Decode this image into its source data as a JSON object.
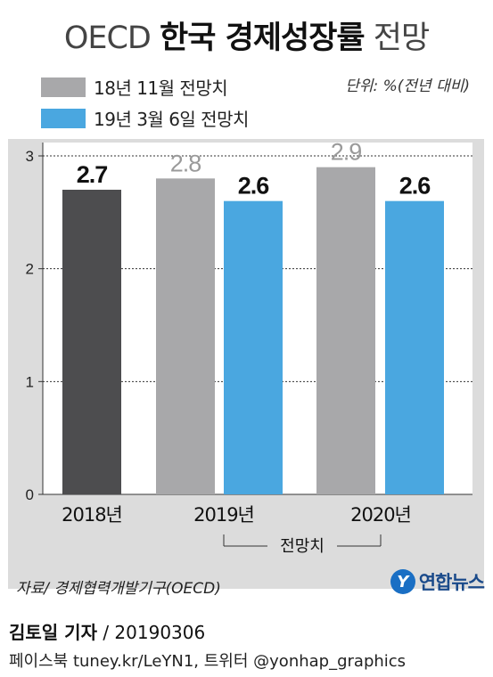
{
  "title": {
    "pre": "OECD",
    "main": "한국 경제성장률",
    "post": "전망"
  },
  "legend": [
    {
      "label": "18년 11월 전망치",
      "color": "#a8a8aa"
    },
    {
      "label": "19년 3월 6일 전망치",
      "color": "#4aa7e0"
    }
  ],
  "unit": "단위: %(전년 대비)",
  "chart_data": {
    "type": "bar",
    "categories": [
      "2018년",
      "2019년",
      "2020년"
    ],
    "ylim": [
      0,
      3
    ],
    "yticks": [
      "0",
      "1",
      "2",
      "3"
    ],
    "bars": [
      {
        "category": "2018년",
        "value": 2.7,
        "label": "2.7",
        "color": "#4d4d4f",
        "label_color": "#111111"
      },
      {
        "category": "2019년",
        "value": 2.8,
        "label": "2.8",
        "color": "#a8a8aa",
        "label_color": "#9a9a9a"
      },
      {
        "category": "2019년",
        "value": 2.6,
        "label": "2.6",
        "color": "#4aa7e0",
        "label_color": "#111111"
      },
      {
        "category": "2020년",
        "value": 2.9,
        "label": "2.9",
        "color": "#a8a8aa",
        "label_color": "#9a9a9a"
      },
      {
        "category": "2020년",
        "value": 2.6,
        "label": "2.6",
        "color": "#4aa7e0",
        "label_color": "#111111"
      }
    ],
    "bracket_label": "전망치",
    "grid": true
  },
  "source": "자료/ 경제협력개발기구(OECD)",
  "logo": {
    "mark": "Y",
    "text": "연합뉴스"
  },
  "credit": {
    "reporter": "김토일 기자",
    "sep": " / ",
    "date": "20190306"
  },
  "social": "페이스북 tuney.kr/LeYN1, 트위터 @yonhap_graphics"
}
